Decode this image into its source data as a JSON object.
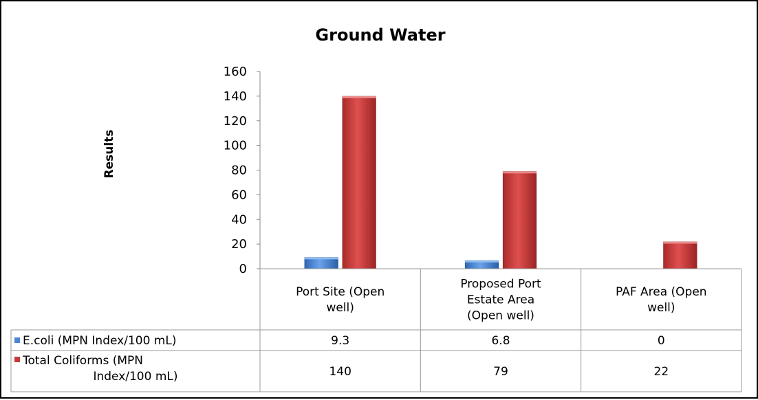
{
  "chart_data": {
    "type": "bar",
    "title": "Ground Water",
    "ylabel": "Results",
    "xlabel": "",
    "ylim": [
      0,
      160
    ],
    "yticks": [
      0,
      20,
      40,
      60,
      80,
      100,
      120,
      140,
      160
    ],
    "categories": [
      [
        "Port Site (Open",
        "well)"
      ],
      [
        "Proposed Port",
        "Estate Area",
        "(Open well)"
      ],
      [
        "PAF Area (Open",
        "well)"
      ]
    ],
    "series": [
      {
        "name": [
          "E.coli (MPN Index/100 mL)"
        ],
        "values": [
          9.3,
          6.8,
          0
        ],
        "value_labels": [
          "9.3",
          "6.8",
          "0"
        ],
        "color": "#4a86d4"
      },
      {
        "name": [
          "Total Coliforms (MPN",
          "Index/100 mL)"
        ],
        "values": [
          140,
          79,
          22
        ],
        "value_labels": [
          "140",
          "79",
          "22"
        ],
        "color": "#c83a3a"
      }
    ],
    "grid": false,
    "legend": "data-table"
  }
}
